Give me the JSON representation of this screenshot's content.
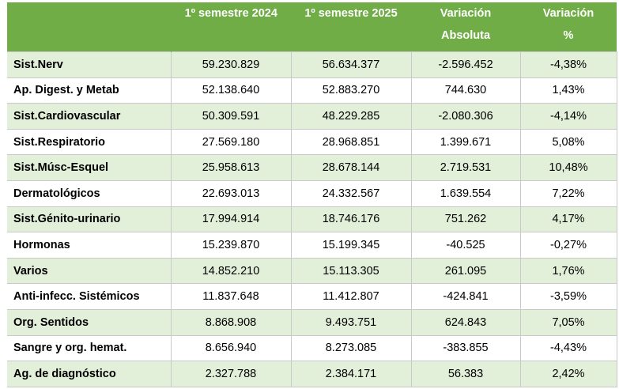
{
  "header": {
    "col1": "1º semestre 2024",
    "col2": "1º semestre 2025",
    "col3_line1": "Variación",
    "col3_line2": "Absoluta",
    "col4_line1": "Variación",
    "col4_line2": "%"
  },
  "rows": [
    {
      "cat": "Sist.Nerv",
      "s2024": "59.230.829",
      "s2025": "56.634.377",
      "abs": "-2.596.452",
      "pct": "-4,38%"
    },
    {
      "cat": "Ap. Digest. y Metab",
      "s2024": "52.138.640",
      "s2025": "52.883.270",
      "abs": "744.630",
      "pct": "1,43%"
    },
    {
      "cat": "Sist.Cardiovascular",
      "s2024": "50.309.591",
      "s2025": "48.229.285",
      "abs": "-2.080.306",
      "pct": "-4,14%"
    },
    {
      "cat": "Sist.Respiratorio",
      "s2024": "27.569.180",
      "s2025": "28.968.851",
      "abs": "1.399.671",
      "pct": "5,08%"
    },
    {
      "cat": "Sist.Músc-Esquel",
      "s2024": "25.958.613",
      "s2025": "28.678.144",
      "abs": "2.719.531",
      "pct": "10,48%"
    },
    {
      "cat": "Dermatológicos",
      "s2024": "22.693.013",
      "s2025": "24.332.567",
      "abs": "1.639.554",
      "pct": "7,22%"
    },
    {
      "cat": "Sist.Génito-urinario",
      "s2024": "17.994.914",
      "s2025": "18.746.176",
      "abs": "751.262",
      "pct": "4,17%"
    },
    {
      "cat": "Hormonas",
      "s2024": "15.239.870",
      "s2025": "15.199.345",
      "abs": "-40.525",
      "pct": "-0,27%"
    },
    {
      "cat": "Varios",
      "s2024": "14.852.210",
      "s2025": "15.113.305",
      "abs": "261.095",
      "pct": "1,76%"
    },
    {
      "cat": "Anti-infecc. Sistémicos",
      "s2024": "11.837.648",
      "s2025": "11.412.807",
      "abs": "-424.841",
      "pct": "-3,59%"
    },
    {
      "cat": "Org. Sentidos",
      "s2024": "8.868.908",
      "s2025": "9.493.751",
      "abs": "624.843",
      "pct": "7,05%"
    },
    {
      "cat": "Sangre y org. hemat.",
      "s2024": "8.656.940",
      "s2025": "8.273.085",
      "abs": "-383.855",
      "pct": "-4,43%"
    },
    {
      "cat": "Ag. de diagnóstico",
      "s2024": "2.327.788",
      "s2025": "2.384.171",
      "abs": "56.383",
      "pct": "2,42%"
    }
  ],
  "colors": {
    "header_bg": "#70ad47",
    "band_bg": "#e2efd9",
    "header_text": "#ffffff"
  }
}
